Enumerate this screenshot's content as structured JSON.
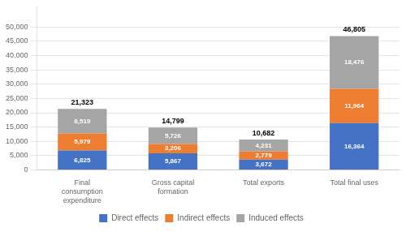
{
  "chart_data": {
    "type": "bar",
    "stacked": true,
    "data_labels": true,
    "grid": true,
    "legend": "bottom",
    "categories": [
      "Final\nconsumption\nexpenditure",
      "Gross capital\nformation",
      "Total exports",
      "Total final uses"
    ],
    "series": [
      {
        "name": "Direct effects",
        "color": "#4472C4",
        "values": [
          6825,
          5867,
          3672,
          16364
        ],
        "value_labels": [
          "6,825",
          "5,867",
          "3,672",
          "16,364"
        ]
      },
      {
        "name": "Indirect effects",
        "color": "#ED7D31",
        "values": [
          5979,
          3206,
          2779,
          11964
        ],
        "value_labels": [
          "5,979",
          "3,206",
          "2,779",
          "11,964"
        ]
      },
      {
        "name": "Induced effects",
        "color": "#A5A5A5",
        "values": [
          8519,
          5726,
          4231,
          18476
        ],
        "value_labels": [
          "8,519",
          "5,726",
          "4,231",
          "18,476"
        ]
      }
    ],
    "totals": [
      21323,
      14799,
      10682,
      46805
    ],
    "total_labels": [
      "21,323",
      "14,799",
      "10,682",
      "46,805"
    ],
    "ylim": [
      0,
      57000
    ],
    "yticks": [
      0,
      {
        "value": 5000,
        "label": "5,000"
      },
      {
        "value": 10000,
        "label": "10,000"
      },
      {
        "value": 15000,
        "label": "15,000"
      },
      {
        "value": 20000,
        "label": "20,000"
      },
      {
        "value": 25000,
        "label": "25,000"
      },
      {
        "value": 30000,
        "label": "30,000"
      },
      {
        "value": 35000,
        "label": "35,000"
      },
      {
        "value": 40000,
        "label": "40,000"
      },
      {
        "value": 45000,
        "label": "45,000"
      },
      {
        "value": 50000,
        "label": "50,000"
      }
    ]
  }
}
